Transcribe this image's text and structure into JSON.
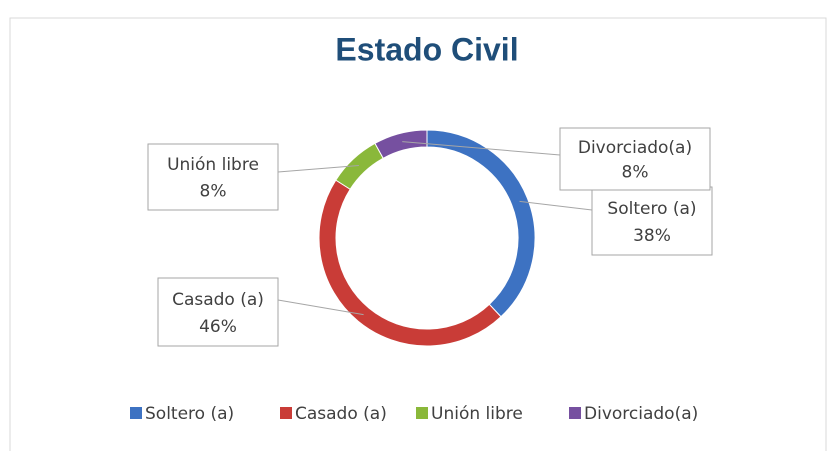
{
  "chart_data": {
    "type": "donut",
    "title": "Estado Civil",
    "categories": [
      "Soltero (a)",
      "Casado (a)",
      "Unión libre",
      "Divorciado(a)"
    ],
    "values": [
      38,
      46,
      8,
      8
    ],
    "value_labels": [
      "38%",
      "46%",
      "8%",
      "8%"
    ],
    "colors": [
      "#3d72c2",
      "#c93c37",
      "#8ab83a",
      "#7650a0"
    ],
    "legend": "bottom"
  }
}
